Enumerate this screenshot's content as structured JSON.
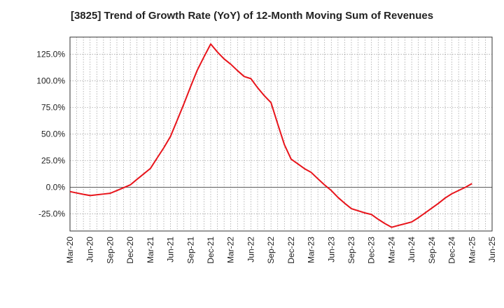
{
  "chart_data": {
    "type": "line",
    "title": "[3825]  Trend of Growth Rate (YoY) of 12-Month Moving Sum of Revenues",
    "xlabel": "",
    "ylabel": "",
    "x_ticks": [
      "Mar-20",
      "Jun-20",
      "Sep-20",
      "Dec-20",
      "Mar-21",
      "Jun-21",
      "Sep-21",
      "Dec-21",
      "Mar-22",
      "Jun-22",
      "Sep-22",
      "Dec-22",
      "Mar-23",
      "Jun-23",
      "Sep-23",
      "Dec-23",
      "Mar-24",
      "Jun-24",
      "Sep-24",
      "Dec-24",
      "Mar-25",
      "Jun-25"
    ],
    "y_ticks": [
      "-25.0%",
      "0.0%",
      "25.0%",
      "50.0%",
      "75.0%",
      "100.0%",
      "125.0%"
    ],
    "ylim": [
      -41,
      141
    ],
    "grid": true,
    "legend": "none",
    "color": "#e8141b",
    "series": [
      {
        "x": [
          "2020-03",
          "2020-04",
          "2020-05",
          "2020-06",
          "2020-07",
          "2020-08",
          "2020-09",
          "2020-10",
          "2020-11",
          "2020-12",
          "2021-01",
          "2021-02",
          "2021-03",
          "2021-04",
          "2021-05",
          "2021-06",
          "2021-07",
          "2021-08",
          "2021-09",
          "2021-10",
          "2021-11",
          "2021-12",
          "2022-01",
          "2022-02",
          "2022-03",
          "2022-04",
          "2022-05",
          "2022-06",
          "2022-07",
          "2022-08",
          "2022-09",
          "2022-10",
          "2022-11",
          "2022-12",
          "2023-01",
          "2023-02",
          "2023-03",
          "2023-04",
          "2023-05",
          "2023-06",
          "2023-07",
          "2023-08",
          "2023-09",
          "2023-10",
          "2023-11",
          "2023-12",
          "2024-01",
          "2024-02",
          "2024-03",
          "2024-04",
          "2024-05",
          "2024-06",
          "2024-07",
          "2024-08",
          "2024-09",
          "2024-10",
          "2024-11",
          "2024-12",
          "2025-01",
          "2025-02",
          "2025-03"
        ],
        "values": [
          -4.0,
          -5.3,
          -6.6,
          -7.7,
          -7.0,
          -6.3,
          -5.6,
          -3.0,
          -0.4,
          2.3,
          7.5,
          12.6,
          17.7,
          27.5,
          37.1,
          47.8,
          63.0,
          78.3,
          94.5,
          110.0,
          122.5,
          134.5,
          127.0,
          120.5,
          115.5,
          109.5,
          104.0,
          102.0,
          93.5,
          86.0,
          79.5,
          59.5,
          40.0,
          26.5,
          22.0,
          17.5,
          14.0,
          8.0,
          2.2,
          -3.0,
          -9.5,
          -15.0,
          -20.0,
          -22.0,
          -24.0,
          -25.5,
          -30.0,
          -34.0,
          -37.5,
          -35.8,
          -34.2,
          -32.5,
          -28.5,
          -24.0,
          -19.5,
          -15.0,
          -10.0,
          -6.0,
          -3.0,
          0.0,
          3.5
        ]
      }
    ]
  }
}
